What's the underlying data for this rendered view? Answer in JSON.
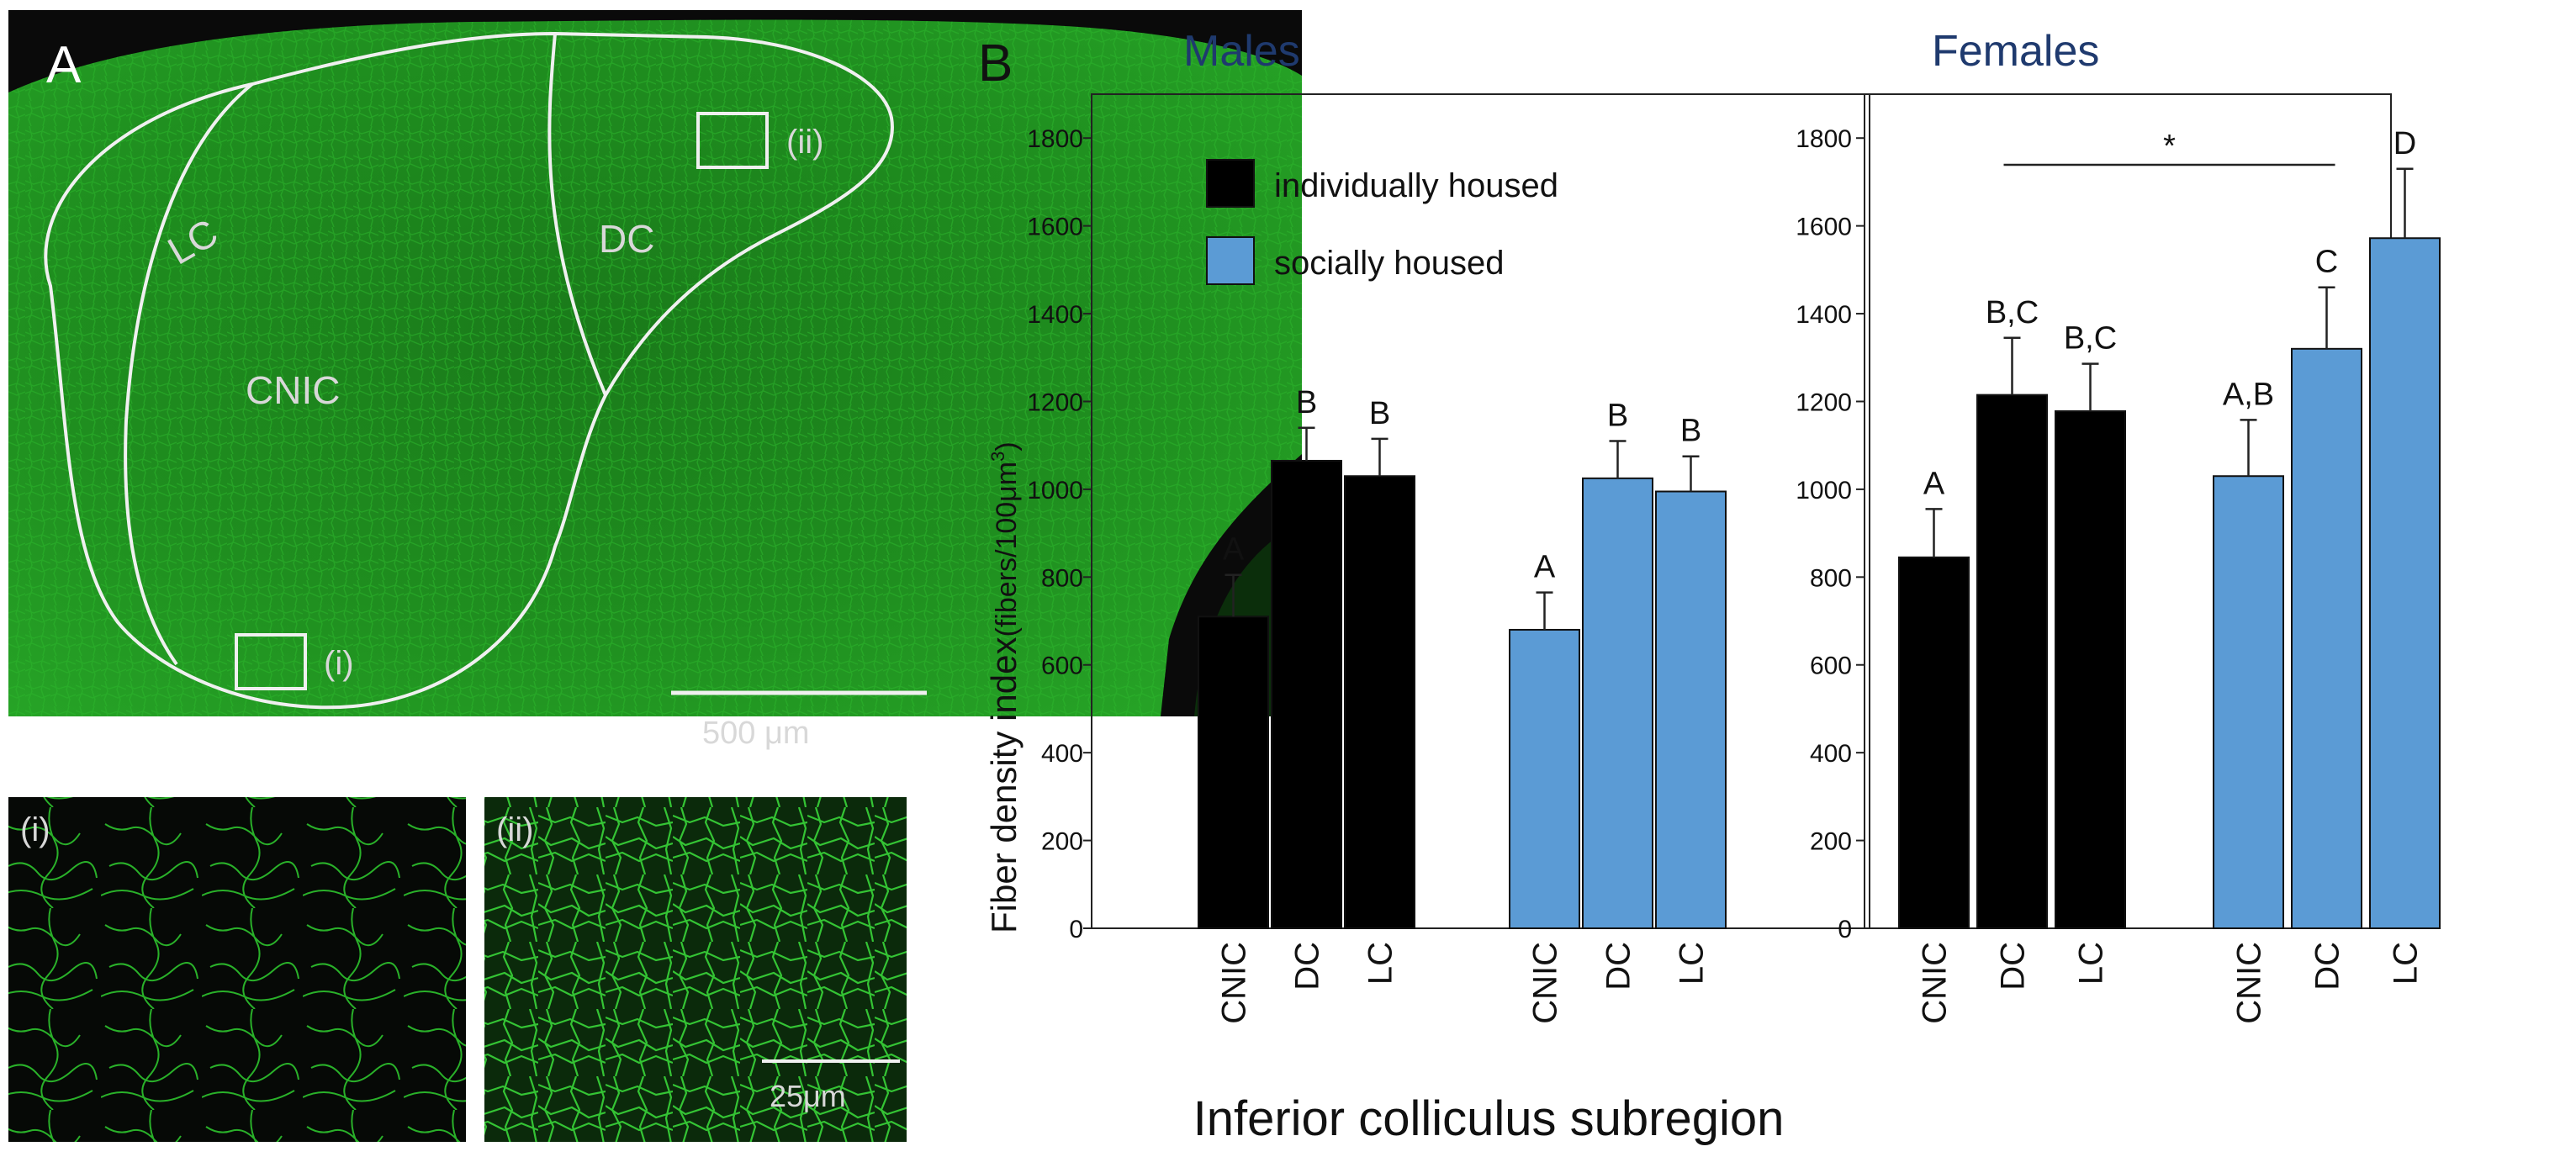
{
  "panel_a": {
    "letter": "A",
    "region_labels": {
      "lc": "LC",
      "dc": "DC",
      "cnic": "CNIC"
    },
    "box_labels": {
      "i": "(i)",
      "ii": "(ii)"
    },
    "scale_bar_label": "500 μm",
    "insets": [
      {
        "label": "(i)"
      },
      {
        "label": "(ii)",
        "scale_bar_label": "25μm"
      }
    ],
    "colors": {
      "tissue": "#1f8a1f",
      "background": "#0a0a0a",
      "outline": "#f0f0f0"
    }
  },
  "panel_b": {
    "letter": "B",
    "ylabel_main": "Fiber density index",
    "ylabel_unit": "(fibers/100μm",
    "ylabel_sup": "3",
    "ylabel_close": ")",
    "xlabel": "Inferior colliculus subregion",
    "legend": [
      {
        "label": "individually housed",
        "color": "#000000"
      },
      {
        "label": "socially housed",
        "color": "#5b9bd5"
      }
    ],
    "title_color": "#1f3a6e"
  },
  "chart_data": [
    {
      "type": "bar",
      "title": "Males",
      "xlabel": "Inferior colliculus subregion",
      "ylabel": "Fiber density index(fibers/100μm3)",
      "ylim": [
        0,
        1900
      ],
      "yticks": [
        0,
        200,
        400,
        600,
        800,
        1000,
        1200,
        1400,
        1600,
        1800
      ],
      "categories": [
        "CNIC",
        "DC",
        "LC"
      ],
      "series": [
        {
          "name": "individually housed",
          "color": "#000000",
          "values": [
            710,
            1065,
            1030
          ],
          "errors": [
            95,
            75,
            85
          ],
          "letters": [
            "A",
            "B",
            "B"
          ]
        },
        {
          "name": "socially housed",
          "color": "#5b9bd5",
          "values": [
            680,
            1025,
            995
          ],
          "errors": [
            85,
            85,
            80
          ],
          "letters": [
            "A",
            "B",
            "B"
          ]
        }
      ]
    },
    {
      "type": "bar",
      "title": "Females",
      "xlabel": "Inferior colliculus subregion",
      "ylabel": "Fiber density index(fibers/100μm3)",
      "ylim": [
        0,
        1900
      ],
      "yticks": [
        0,
        200,
        400,
        600,
        800,
        1000,
        1200,
        1400,
        1600,
        1800
      ],
      "categories": [
        "CNIC",
        "DC",
        "LC"
      ],
      "series": [
        {
          "name": "individually housed",
          "color": "#000000",
          "values": [
            845,
            1215,
            1178
          ],
          "errors": [
            110,
            130,
            108
          ],
          "letters": [
            "A",
            "B,C",
            "B,C"
          ]
        },
        {
          "name": "socially housed",
          "color": "#5b9bd5",
          "values": [
            1030,
            1320,
            1572
          ],
          "errors": [
            128,
            140,
            158
          ],
          "letters": [
            "A,B",
            "C",
            "D"
          ]
        }
      ],
      "annotation": {
        "text": "*",
        "from": "individually housed DC",
        "to": "socially housed DC"
      }
    }
  ]
}
